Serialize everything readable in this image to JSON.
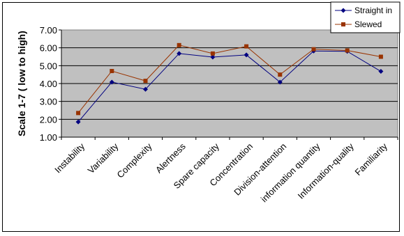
{
  "chart_data": {
    "type": "line",
    "title": "",
    "xlabel": "",
    "ylabel": "Scale 1-7 ( low to high)",
    "ylim": [
      1,
      7
    ],
    "yticks": [
      "1.00",
      "2.00",
      "3.00",
      "4.00",
      "5.00",
      "6.00",
      "7.00"
    ],
    "grid": true,
    "legend_position": "top-right",
    "plot_background": "#c0c0c0",
    "categories": [
      "Instability",
      "Variability",
      "Complexity",
      "Alertness",
      "Spare capacity",
      "Concentration",
      "Division-attention",
      "information quantity",
      "Information-quality",
      "Familiarity"
    ],
    "series": [
      {
        "name": "Straight in",
        "color": "#000080",
        "marker": "diamond",
        "values": [
          1.85,
          4.08,
          3.68,
          5.68,
          5.48,
          5.6,
          4.08,
          5.82,
          5.8,
          4.68
        ]
      },
      {
        "name": "Slewed",
        "color": "#993300",
        "marker": "square",
        "values": [
          2.35,
          4.7,
          4.15,
          6.15,
          5.68,
          6.08,
          4.5,
          5.92,
          5.85,
          5.5
        ]
      }
    ]
  }
}
